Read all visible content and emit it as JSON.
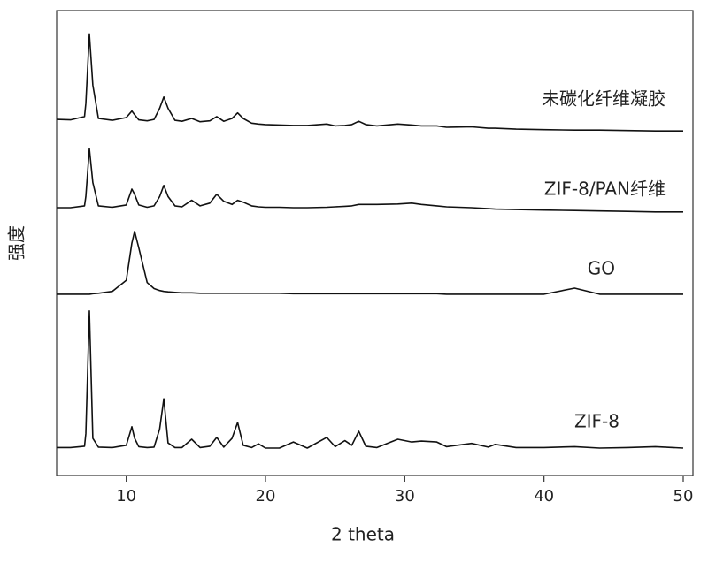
{
  "chart_data": {
    "type": "line",
    "xlabel": "2 theta",
    "ylabel": "强度",
    "xlim": [
      5,
      50
    ],
    "xticks": [
      10,
      20,
      30,
      40,
      50
    ],
    "ylim": [
      0,
      100
    ],
    "x": [
      5,
      6,
      7,
      7.1,
      7.35,
      7.6,
      8,
      9,
      10,
      10.4,
      10.6,
      10.9,
      11.5,
      12,
      12.4,
      12.7,
      13,
      13.5,
      14,
      14.7,
      15.3,
      16,
      16.5,
      17,
      17.6,
      18,
      18.4,
      19,
      19.5,
      20,
      21,
      22,
      23,
      24.4,
      25,
      25.7,
      26.2,
      26.7,
      27.2,
      28,
      29.5,
      30.5,
      31.2,
      32.3,
      33,
      34.8,
      36,
      36.5,
      38,
      40,
      42.2,
      44,
      46,
      48,
      50
    ],
    "series": [
      {
        "name": "未碳化纤维凝胶",
        "color": "#111111",
        "values": [
          76.6,
          76.5,
          77.2,
          80,
          95,
          84,
          76.8,
          76.4,
          77,
          78.4,
          77.6,
          76.5,
          76.3,
          76.6,
          79,
          81.4,
          79,
          76.4,
          76.2,
          76.8,
          76.1,
          76.3,
          77.2,
          76.2,
          76.8,
          78,
          76.8,
          75.8,
          75.6,
          75.5,
          75.4,
          75.3,
          75.3,
          75.6,
          75.2,
          75.3,
          75.5,
          76.2,
          75.5,
          75.2,
          75.6,
          75.4,
          75.2,
          75.2,
          74.9,
          75,
          74.7,
          74.7,
          74.5,
          74.4,
          74.3,
          74.3,
          74.2,
          74.1,
          74.1
        ]
      },
      {
        "name": "ZIF-8/PAN纤维",
        "color": "#111111",
        "values": [
          57.6,
          57.6,
          58,
          60,
          70.3,
          63,
          58,
          57.7,
          58.2,
          61.6,
          60.5,
          58.2,
          57.7,
          58,
          60,
          62.4,
          60,
          58,
          57.8,
          59.2,
          58,
          58.6,
          60.5,
          59,
          58.3,
          59.2,
          58.8,
          58,
          57.8,
          57.7,
          57.7,
          57.6,
          57.6,
          57.7,
          57.8,
          57.9,
          58,
          58.3,
          58.3,
          58.3,
          58.4,
          58.6,
          58.3,
          58,
          57.8,
          57.6,
          57.4,
          57.3,
          57.2,
          57.1,
          57,
          56.9,
          56.8,
          56.7,
          56.7
        ]
      },
      {
        "name": "GO",
        "color": "#111111",
        "values": [
          39,
          39,
          39,
          39,
          39,
          39.1,
          39.2,
          39.6,
          42,
          50,
          52.5,
          49,
          41.5,
          40.2,
          39.8,
          39.6,
          39.5,
          39.4,
          39.3,
          39.3,
          39.2,
          39.2,
          39.2,
          39.2,
          39.2,
          39.2,
          39.2,
          39.2,
          39.2,
          39.2,
          39.2,
          39.1,
          39.1,
          39.1,
          39.1,
          39.1,
          39.1,
          39.1,
          39.1,
          39.1,
          39.1,
          39.1,
          39.1,
          39.1,
          39,
          39,
          39,
          39,
          39,
          39,
          40.3,
          39,
          39,
          39,
          39
        ]
      },
      {
        "name": "ZIF-8",
        "color": "#111111",
        "values": [
          6,
          6,
          6.3,
          9,
          35.4,
          8,
          6.1,
          6,
          6.5,
          10.5,
          8,
          6.2,
          6,
          6.1,
          10,
          16.5,
          7,
          6,
          6,
          7.8,
          6,
          6.3,
          8.2,
          6.1,
          8,
          11.4,
          6.5,
          6,
          6.8,
          5.9,
          5.9,
          7.2,
          5.9,
          8.2,
          6.2,
          7.5,
          6.5,
          9.5,
          6.3,
          6,
          7.8,
          7.2,
          7.4,
          7.2,
          6.2,
          6.9,
          6.1,
          6.7,
          6,
          6,
          6.2,
          5.9,
          6,
          6.2,
          5.9
        ]
      }
    ]
  }
}
